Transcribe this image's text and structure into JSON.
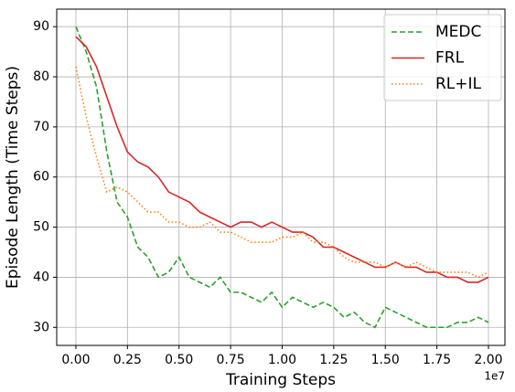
{
  "chart_data": {
    "type": "line",
    "xlabel": "Training Steps",
    "ylabel": "Episode Length (Time Steps)",
    "x_offset_label": "1e7",
    "x": [
      0,
      500000,
      1000000,
      1500000,
      2000000,
      2500000,
      3000000,
      3500000,
      4000000,
      4500000,
      5000000,
      5500000,
      6000000,
      6500000,
      7000000,
      7500000,
      8000000,
      8500000,
      9000000,
      9500000,
      10000000,
      10500000,
      11000000,
      11500000,
      12000000,
      12500000,
      13000000,
      13500000,
      14000000,
      14500000,
      15000000,
      15500000,
      16000000,
      16500000,
      17000000,
      17500000,
      18000000,
      18500000,
      19000000,
      19500000,
      20000000
    ],
    "series": [
      {
        "name": "MEDC",
        "color": "#2ca02c",
        "linestyle": "dashed",
        "values": [
          90,
          85,
          78,
          65,
          55,
          52,
          46,
          44,
          40,
          41,
          44,
          40,
          39,
          38,
          40,
          37,
          37,
          36,
          35,
          37,
          34,
          36,
          35,
          34,
          35,
          34,
          32,
          33,
          31,
          30,
          34,
          33,
          32,
          31,
          30,
          30,
          30,
          31,
          31,
          32,
          31
        ]
      },
      {
        "name": "FRL",
        "color": "#d62728",
        "linestyle": "solid",
        "values": [
          88,
          86,
          82,
          76,
          70,
          65,
          63,
          62,
          60,
          57,
          56,
          55,
          53,
          52,
          51,
          50,
          51,
          51,
          50,
          51,
          50,
          49,
          49,
          48,
          46,
          46,
          45,
          44,
          43,
          42,
          42,
          43,
          42,
          42,
          41,
          41,
          40,
          40,
          39,
          39,
          40
        ]
      },
      {
        "name": "RL+IL",
        "color": "#ff7f0e",
        "linestyle": "dotted",
        "values": [
          82,
          72,
          64,
          57,
          58,
          57,
          55,
          53,
          53,
          51,
          51,
          50,
          50,
          51,
          49,
          49,
          48,
          47,
          47,
          47,
          48,
          48,
          49,
          47,
          47,
          46,
          44,
          43,
          43,
          43,
          42,
          43,
          42,
          43,
          42,
          41,
          41,
          41,
          41,
          40,
          41
        ]
      }
    ],
    "xlim": [
      -930000,
      20800000
    ],
    "xticks": [
      {
        "value": 0,
        "label": "0.00"
      },
      {
        "value": 2500000,
        "label": "0.25"
      },
      {
        "value": 5000000,
        "label": "0.50"
      },
      {
        "value": 7500000,
        "label": "0.75"
      },
      {
        "value": 10000000,
        "label": "1.00"
      },
      {
        "value": 12500000,
        "label": "1.25"
      },
      {
        "value": 15000000,
        "label": "1.50"
      },
      {
        "value": 17500000,
        "label": "1.75"
      },
      {
        "value": 20000000,
        "label": "2.00"
      }
    ],
    "ylim": [
      26.4,
      93.5
    ],
    "yticks": [
      30,
      40,
      50,
      60,
      70,
      80,
      90
    ],
    "grid": true,
    "legend": "upper right"
  }
}
